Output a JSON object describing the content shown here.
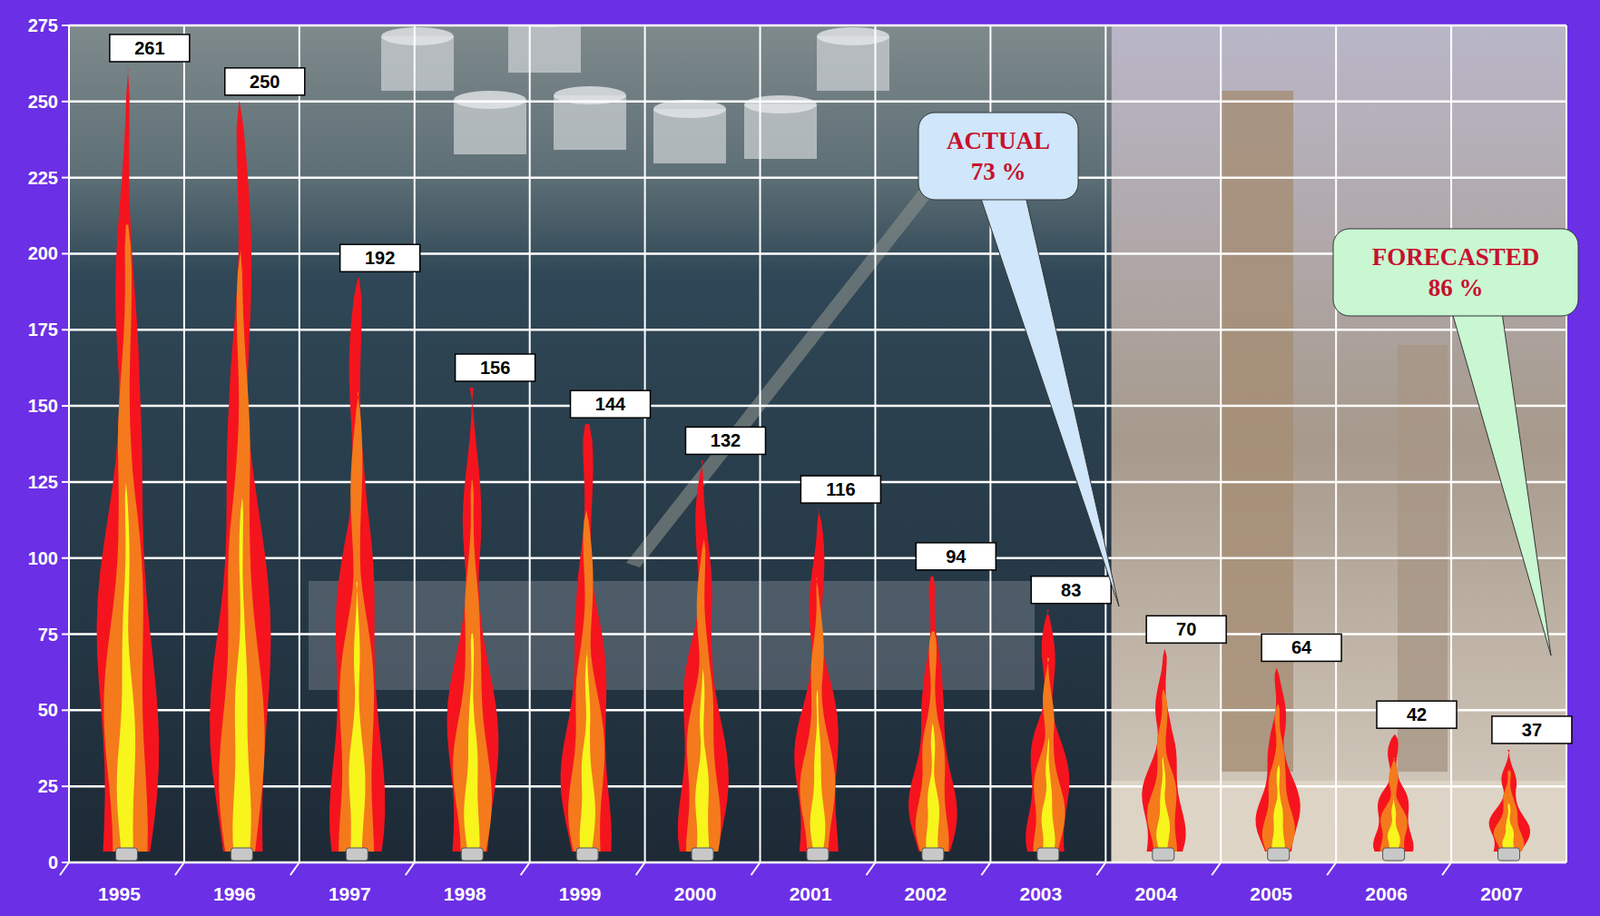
{
  "chart_data": {
    "type": "bar",
    "categories": [
      "1995",
      "1996",
      "1997",
      "1998",
      "1999",
      "2000",
      "2001",
      "2002",
      "2003",
      "2004",
      "2005",
      "2006",
      "2007"
    ],
    "values": [
      261,
      250,
      192,
      156,
      144,
      132,
      116,
      94,
      83,
      70,
      64,
      42,
      37
    ],
    "ylim": [
      0,
      275
    ],
    "yticks": [
      0,
      25,
      50,
      75,
      100,
      125,
      150,
      175,
      200,
      225,
      250,
      275
    ],
    "grid": true,
    "data_labels": true,
    "annotations": [
      [
        "ACTUAL",
        "73 %"
      ],
      [
        "FORECASTED",
        "86 %"
      ]
    ]
  }
}
